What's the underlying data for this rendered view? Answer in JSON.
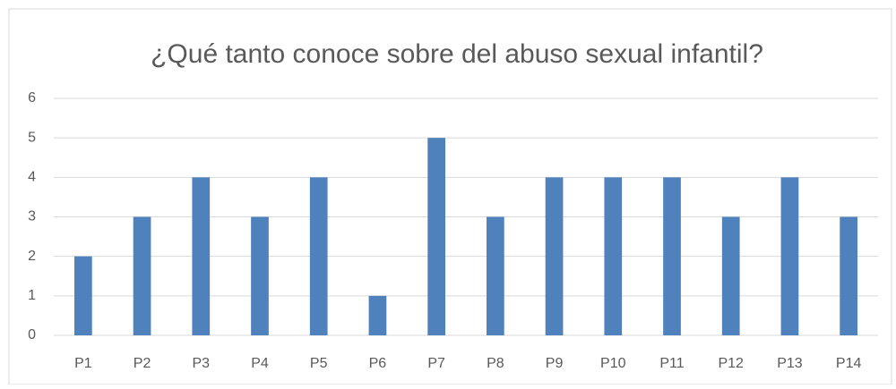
{
  "chart_data": {
    "type": "bar",
    "title": "¿Qué tanto conoce sobre del abuso sexual infantil?",
    "categories": [
      "P1",
      "P2",
      "P3",
      "P4",
      "P5",
      "P6",
      "P7",
      "P8",
      "P9",
      "P10",
      "P11",
      "P12",
      "P13",
      "P14"
    ],
    "values": [
      2,
      3,
      4,
      3,
      4,
      1,
      5,
      3,
      4,
      4,
      4,
      3,
      4,
      3
    ],
    "color": "#4f81bd",
    "ylim": [
      0,
      6
    ],
    "yticks": [
      0,
      1,
      2,
      3,
      4,
      5,
      6
    ],
    "grid": true
  }
}
